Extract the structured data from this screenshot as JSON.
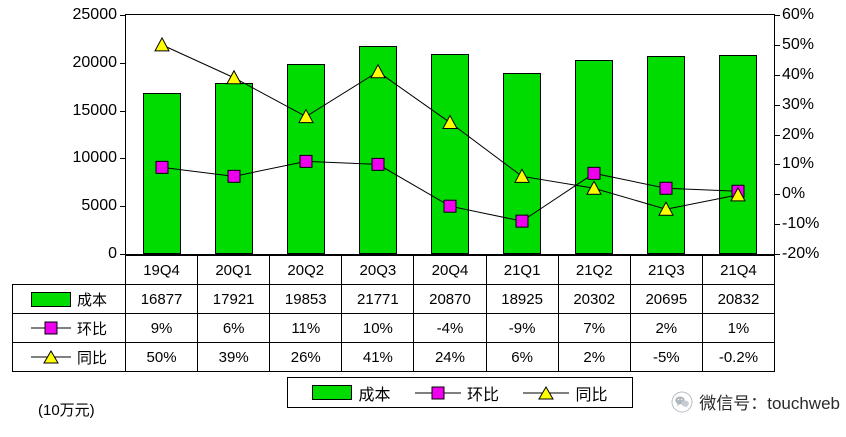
{
  "chart_data": {
    "type": "bar",
    "subtype": "bar+line combo",
    "categories": [
      "19Q4",
      "20Q1",
      "20Q2",
      "20Q3",
      "20Q4",
      "21Q1",
      "21Q2",
      "21Q3",
      "21Q4"
    ],
    "series": [
      {
        "name": "成本",
        "chart": "bar",
        "axis": "left",
        "color": "#00dc00",
        "values": [
          16877,
          17921,
          19853,
          21771,
          20870,
          18925,
          20302,
          20695,
          20832
        ],
        "table_labels": [
          "16877",
          "17921",
          "19853",
          "21771",
          "20870",
          "18925",
          "20302",
          "20695",
          "20832"
        ]
      },
      {
        "name": "环比",
        "chart": "line",
        "axis": "right",
        "marker": "square",
        "marker_color": "#ee00ee",
        "line_color": "#000000",
        "values": [
          9,
          6,
          11,
          10,
          -4,
          -9,
          7,
          2,
          1
        ],
        "table_labels": [
          "9%",
          "6%",
          "11%",
          "10%",
          "-4%",
          "-9%",
          "7%",
          "2%",
          "1%"
        ]
      },
      {
        "name": "同比",
        "chart": "line",
        "axis": "right",
        "marker": "triangle",
        "marker_color": "#ffff00",
        "line_color": "#000000",
        "values": [
          50,
          39,
          26,
          41,
          24,
          6,
          2,
          -5,
          -0.2
        ],
        "table_labels": [
          "50%",
          "39%",
          "26%",
          "41%",
          "24%",
          "6%",
          "2%",
          "-5%",
          "-0.2%"
        ]
      }
    ],
    "left_axis": {
      "min": 0,
      "max": 25000,
      "step": 5000,
      "tick_labels": [
        "25000",
        "20000",
        "15000",
        "10000",
        "5000",
        "0"
      ]
    },
    "right_axis": {
      "min": -20,
      "max": 60,
      "step": 10,
      "tick_labels": [
        "60%",
        "50%",
        "40%",
        "30%",
        "20%",
        "10%",
        "0%",
        "-10%",
        "-20%"
      ]
    },
    "legend": [
      "成本",
      "环比",
      "同比"
    ],
    "legend_position": "bottom",
    "grid": false,
    "title": ""
  },
  "footer": {
    "unit_label": "(10万元)",
    "wechat_label": "微信号：touchweb"
  }
}
